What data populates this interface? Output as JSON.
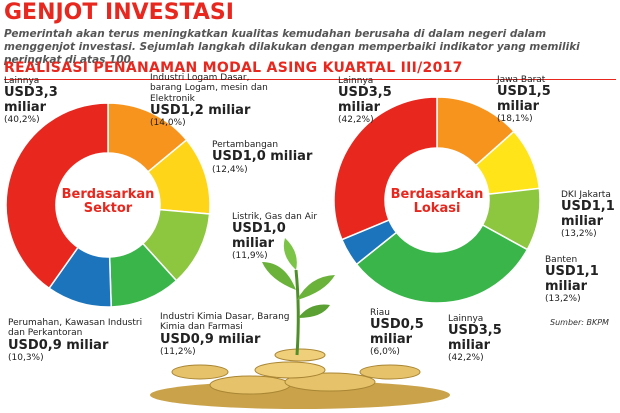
{
  "header": {
    "title": "GENJOT INVESTASI",
    "intro": "Pemerintah akan terus meningkatkan kualitas kemudahan berusaha di dalam negeri dalam menggenjot investasi. Sejumlah langkah dilakukan dengan memperbaiki indikator yang memiliki peringkat di atas 100.",
    "subtitle": "REALISASI PENANAMAN MODAL ASING KUARTAL III/2017",
    "source": "Sumber: BKPM"
  },
  "chart_data": [
    {
      "type": "pie",
      "title": "Berdasarkan Sektor",
      "categories": [
        "Industri Logam Dasar, barang Logam, mesin dan Elektronik",
        "Pertambangan",
        "Listrik, Gas dan Air",
        "Industri Kimia Dasar, Barang Kimia dan Farmasi",
        "Perumahan, Kawasan Industri dan Perkantoran",
        "Lainnya"
      ],
      "amounts": [
        "USD1,2 miliar",
        "USD1,0 miliar",
        "USD1,0 miliar",
        "USD0,9 miliar",
        "USD0,9 miliar",
        "USD3,3 miliar"
      ],
      "values": [
        14.0,
        12.4,
        11.9,
        11.2,
        10.3,
        40.2
      ],
      "value_labels": [
        "(14,0%)",
        "(12,4%)",
        "(11,9%)",
        "(11,2%)",
        "(10,3%)",
        "(40,2%)"
      ],
      "colors": [
        "#f7941d",
        "#ffd51a",
        "#8dc63f",
        "#39b54a",
        "#1c75bc",
        "#e8281e"
      ]
    },
    {
      "type": "pie",
      "title": "Berdasarkan Lokasi",
      "categories": [
        "Jawa Barat",
        "DKI Jakarta",
        "Banten",
        "Lainnya",
        "Riau",
        "Lainnya"
      ],
      "amounts": [
        "USD1,5 miliar",
        "USD1,1 miliar",
        "USD1,1 miliar",
        "USD3,5 miliar",
        "USD0,5 miliar",
        "USD3,5 miliar"
      ],
      "values": [
        18.1,
        13.2,
        13.2,
        42.2,
        6.0,
        42.2
      ],
      "value_labels": [
        "(18,1%)",
        "(13,2%)",
        "(13,2%)",
        "(42,2%)",
        "(6,0%)",
        "(42,2%)"
      ],
      "colors": [
        "#f7941d",
        "#ffe41a",
        "#8dc63f",
        "#39b54a",
        "#1c75bc",
        "#e8281e"
      ]
    }
  ]
}
